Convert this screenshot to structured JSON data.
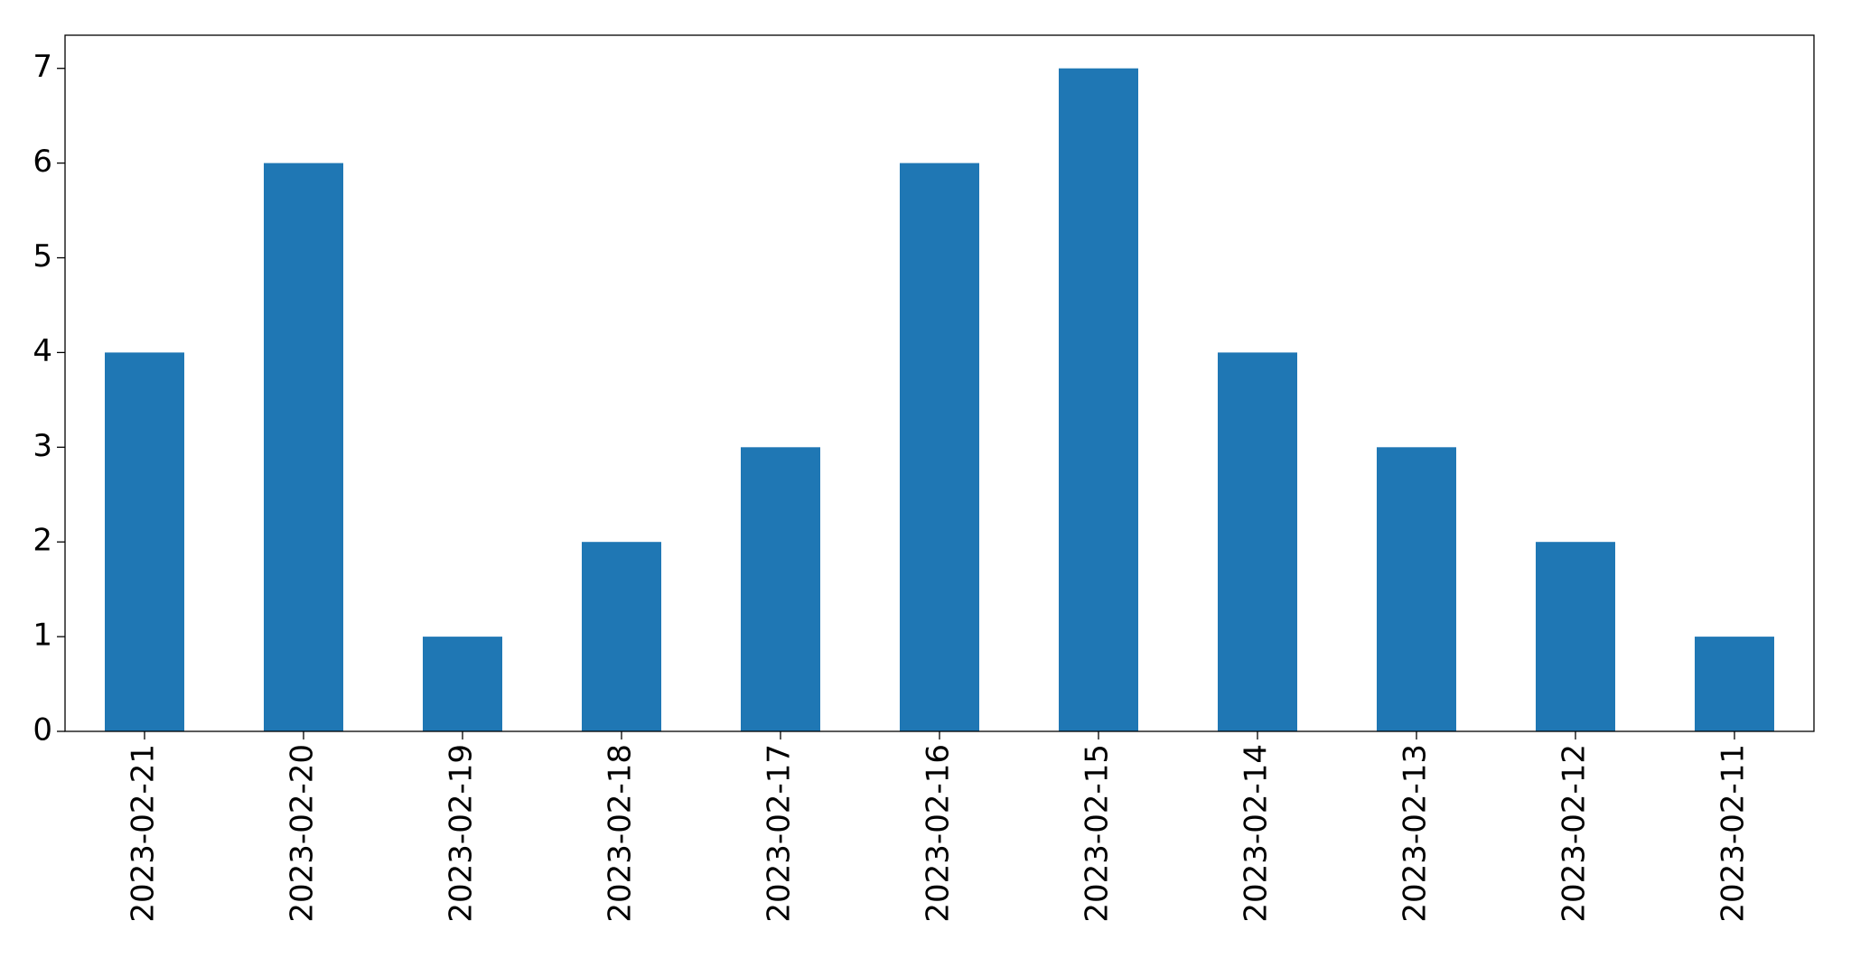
{
  "chart_data": {
    "type": "bar",
    "categories": [
      "2023-02-21",
      "2023-02-20",
      "2023-02-19",
      "2023-02-18",
      "2023-02-17",
      "2023-02-16",
      "2023-02-15",
      "2023-02-14",
      "2023-02-13",
      "2023-02-12",
      "2023-02-11"
    ],
    "values": [
      4,
      6,
      1,
      2,
      3,
      6,
      7,
      4,
      3,
      2,
      1
    ],
    "color": "#1f77b4",
    "ylim": [
      0,
      7.35
    ],
    "yticks": [
      0,
      1,
      2,
      3,
      4,
      5,
      6,
      7
    ],
    "grid": false
  }
}
